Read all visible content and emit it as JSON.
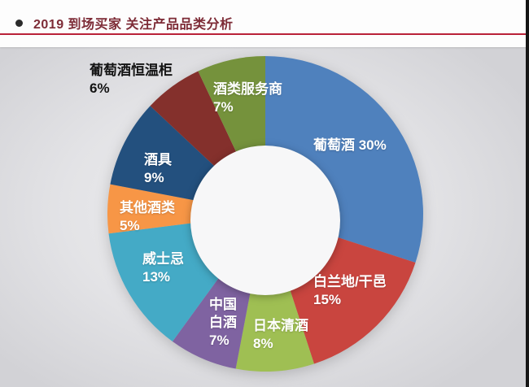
{
  "header": {
    "title": "2019 到场买家 关注产品品类分析",
    "title_color": "#7d2b36",
    "underline_color": "#b92138"
  },
  "chart_data": {
    "type": "pie",
    "subtype": "donut",
    "title": "2019 到场买家 关注产品品类分析",
    "direction": "clockwise",
    "start_angle_deg": 0,
    "inner_radius_ratio": 0.47,
    "legend_position": "none",
    "labels_on_segments": true,
    "unit": "%",
    "total": 100,
    "hole_color": "#f7f7f8",
    "segments": [
      {
        "id": "wine",
        "label": "葡萄酒",
        "value": 30,
        "color": "#4f81bd",
        "callout": "葡萄酒 30%",
        "text_color": "#ffffff"
      },
      {
        "id": "brandy-cognac",
        "label": "白兰地/干邑",
        "value": 15,
        "color": "#c9453f",
        "callout": "白兰地/干邑\n15%",
        "text_color": "#ffffff"
      },
      {
        "id": "japanese-sake",
        "label": "日本清酒",
        "value": 8,
        "color": "#9fbf53",
        "callout": "日本清酒\n8%",
        "text_color": "#ffffff"
      },
      {
        "id": "chinese-baijiu",
        "label": "中国白酒",
        "value": 7,
        "color": "#7f63a1",
        "callout": "中国\n白酒\n7%",
        "text_color": "#ffffff"
      },
      {
        "id": "whisky",
        "label": "威士忌",
        "value": 13,
        "color": "#44aac6",
        "callout": "威士忌\n13%",
        "text_color": "#ffffff"
      },
      {
        "id": "other-alcohol",
        "label": "其他酒类",
        "value": 5,
        "color": "#f79646",
        "callout": "其他酒类\n5%",
        "text_color": "#ffffff"
      },
      {
        "id": "drinkware",
        "label": "酒具",
        "value": 9,
        "color": "#23507e",
        "callout": "酒具\n9%",
        "text_color": "#ffffff"
      },
      {
        "id": "wine-cabinet",
        "label": "葡萄酒恒温柜",
        "value": 6,
        "color": "#84302c",
        "callout": "葡萄酒恒温柜\n6%",
        "text_color": "#141414"
      },
      {
        "id": "alcohol-service",
        "label": "酒类服务商",
        "value": 7,
        "color": "#75923c",
        "callout": "酒类服务商\n7%",
        "text_color": "#ffffff"
      }
    ]
  }
}
